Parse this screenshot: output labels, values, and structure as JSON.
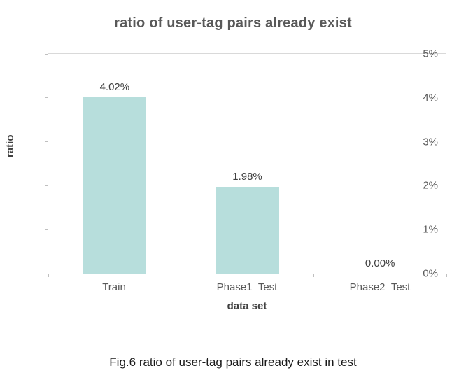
{
  "chart": {
    "title": "ratio of user-tag pairs already exist",
    "ylabel": "ratio",
    "xlabel": "data set",
    "caption": "Fig.6 ratio of user-tag pairs already exist in test"
  },
  "chart_data": {
    "type": "bar",
    "title": "ratio of user-tag pairs already exist",
    "categories": [
      "Train",
      "Phase1_Test",
      "Phase2_Test"
    ],
    "values": [
      4.02,
      1.98,
      0.0
    ],
    "data_labels": [
      "4.02%",
      "1.98%",
      "0.00%"
    ],
    "xlabel": "data set",
    "ylabel": "ratio",
    "ylim": [
      0,
      5
    ],
    "yticks": [
      "0%",
      "1%",
      "2%",
      "3%",
      "4%",
      "5%"
    ],
    "bar_color": "#b7dedc",
    "axis_color": "#bfbfbf",
    "grid": false,
    "legend": false
  }
}
